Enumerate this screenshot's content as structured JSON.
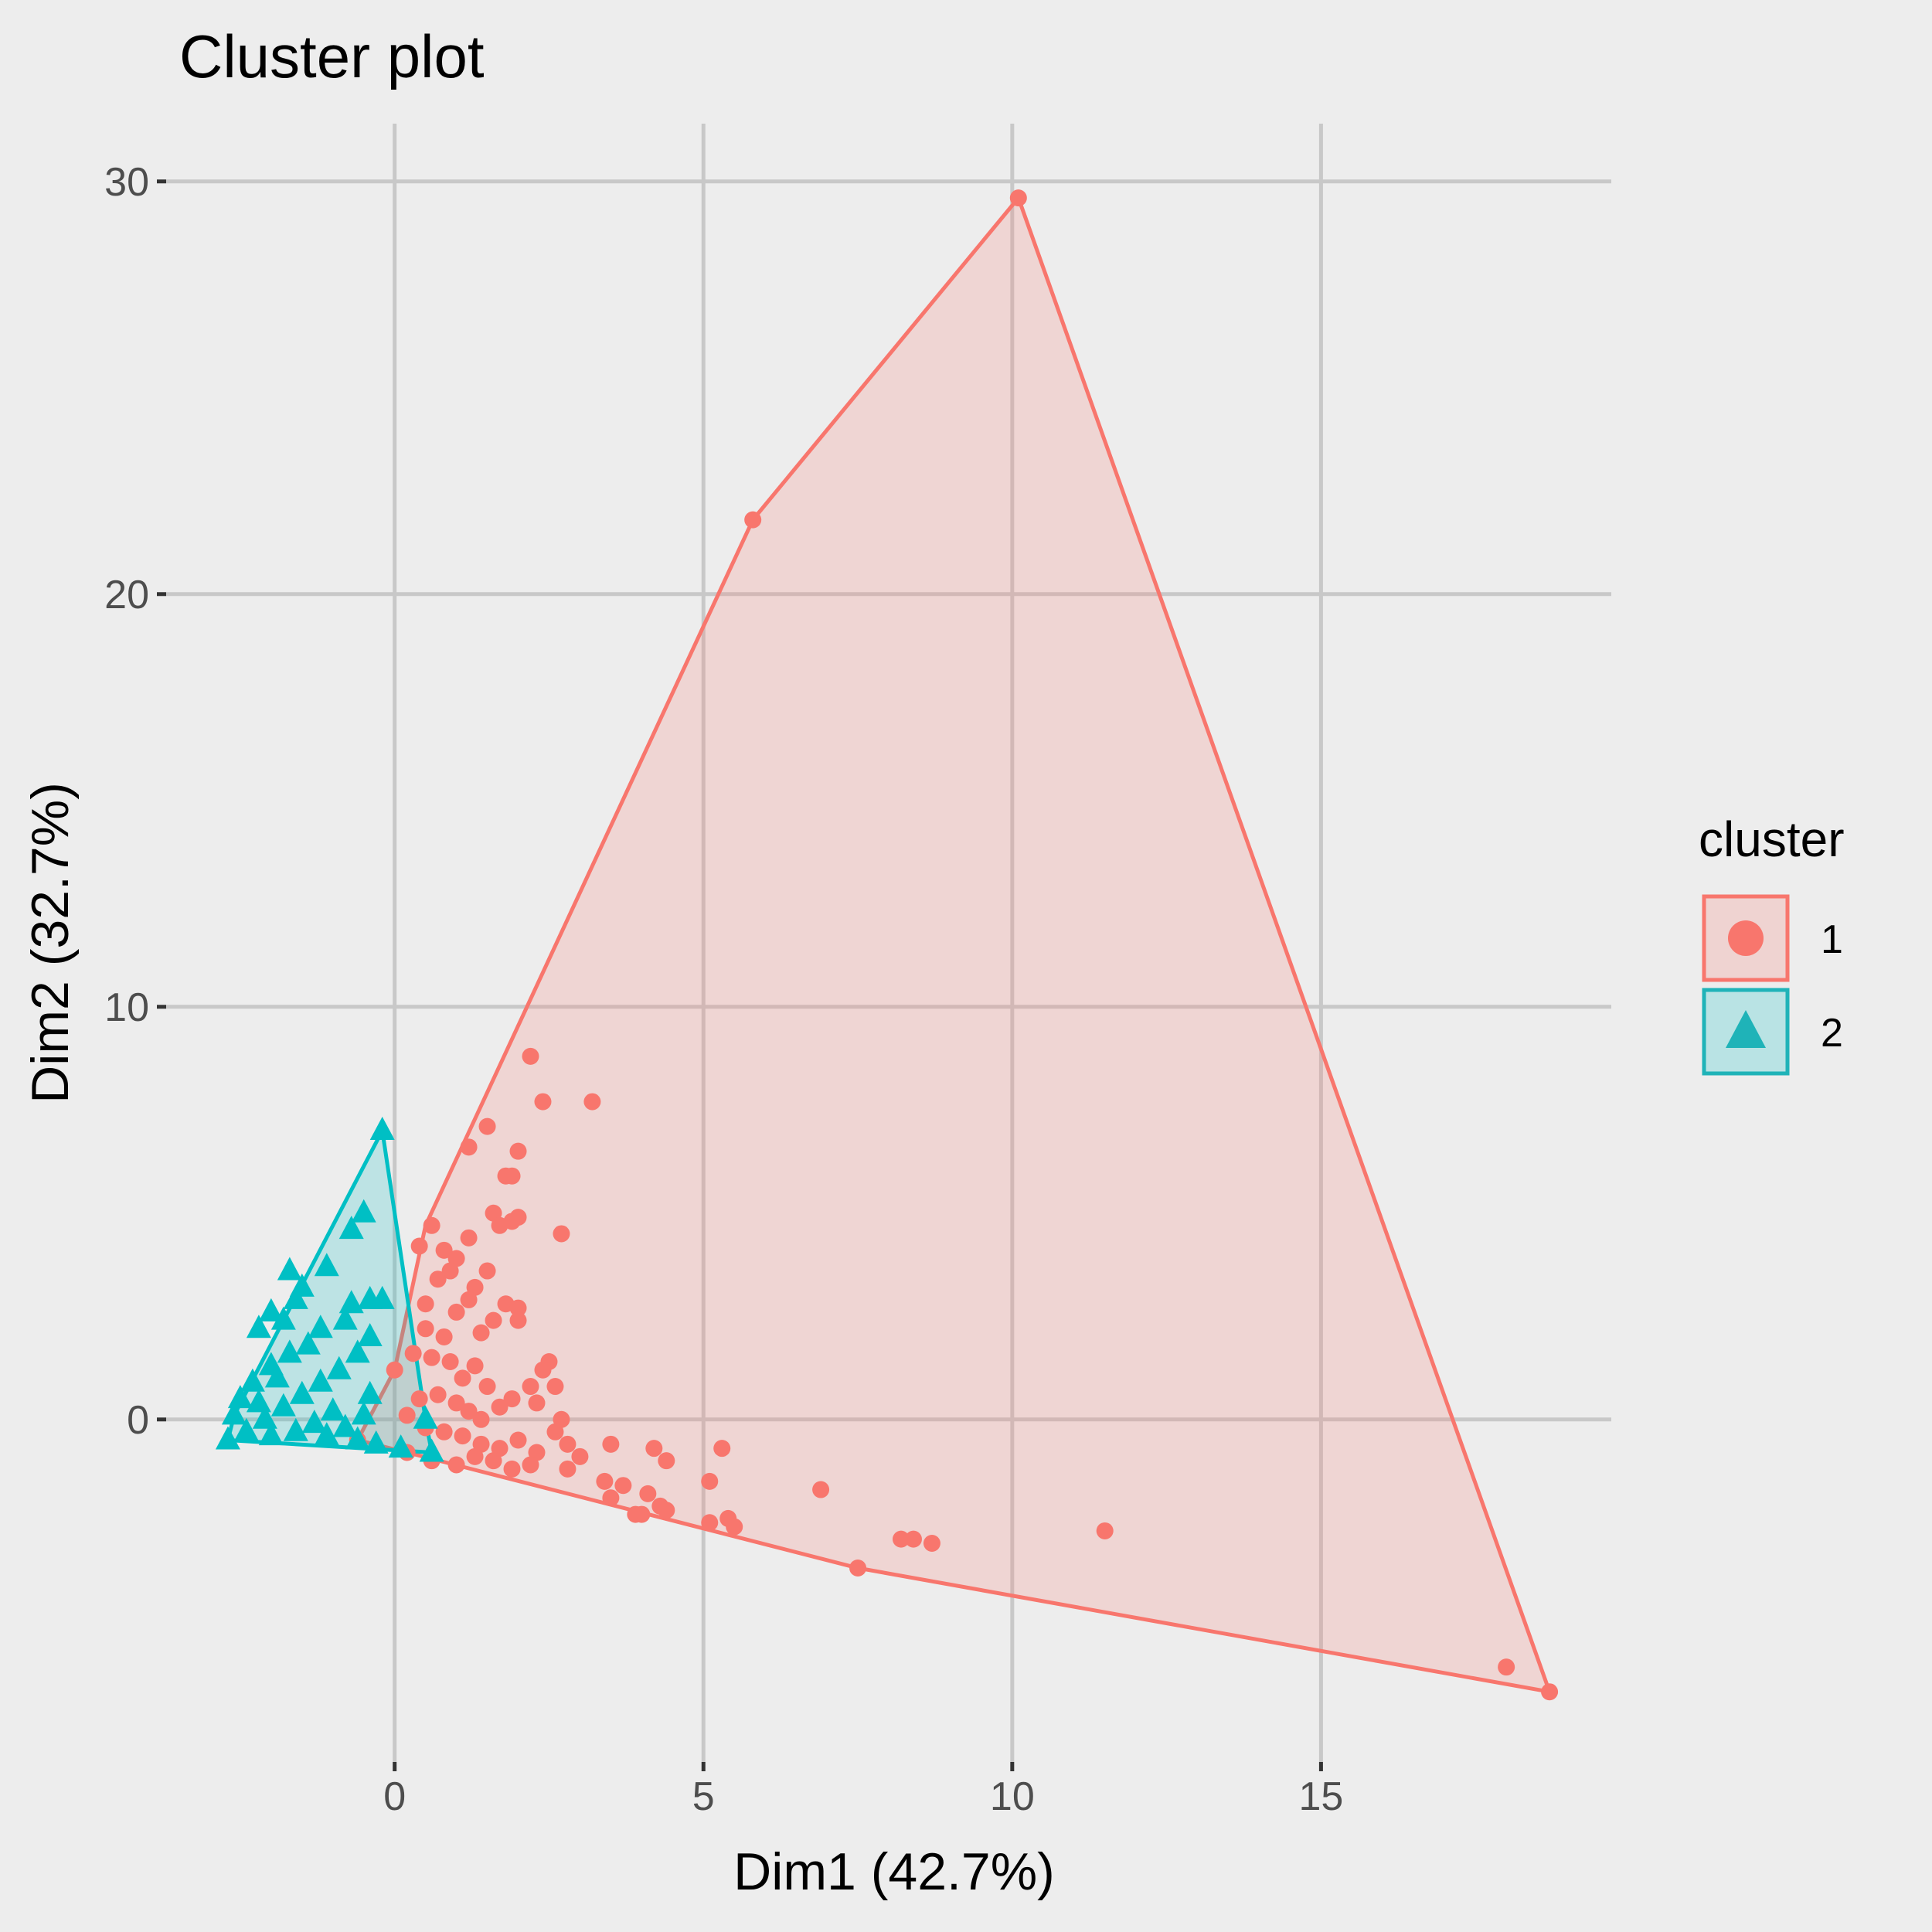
{
  "chart_data": {
    "type": "scatter",
    "title": "Cluster plot",
    "xlabel": "Dim1 (42.7%)",
    "ylabel": "Dim2 (32.7%)",
    "xlim": [
      -3.7,
      19.7
    ],
    "ylim": [
      -8.3,
      31.4
    ],
    "x_ticks": [
      0,
      5,
      10,
      15
    ],
    "y_ticks": [
      0,
      10,
      20,
      30
    ],
    "grid": true,
    "legend": {
      "title": "cluster",
      "placement": "right"
    },
    "series": [
      {
        "name": "1",
        "marker": "circle",
        "color": "#F8766D",
        "fill": "#F8766D",
        "hull": [
          [
            10.1,
            29.6
          ],
          [
            5.8,
            21.8
          ],
          [
            0.5,
            4.7
          ],
          [
            0.0,
            1.2
          ],
          [
            -0.6,
            -0.5
          ],
          [
            0.2,
            -0.8
          ],
          [
            7.5,
            -3.6
          ],
          [
            18.7,
            -6.6
          ]
        ],
        "points": [
          [
            10.1,
            29.6
          ],
          [
            5.8,
            21.8
          ],
          [
            18.7,
            -6.6
          ],
          [
            18.0,
            -6.0
          ],
          [
            7.5,
            -3.6
          ],
          [
            11.5,
            -2.7
          ],
          [
            8.2,
            -2.9
          ],
          [
            8.4,
            -2.9
          ],
          [
            8.7,
            -3.0
          ],
          [
            6.9,
            -1.7
          ],
          [
            5.3,
            -0.7
          ],
          [
            5.1,
            -1.5
          ],
          [
            4.4,
            -1.0
          ],
          [
            4.2,
            -0.7
          ],
          [
            5.4,
            -2.4
          ],
          [
            5.5,
            -2.6
          ],
          [
            5.1,
            -2.5
          ],
          [
            4.4,
            -2.2
          ],
          [
            4.1,
            -1.8
          ],
          [
            4.3,
            -2.1
          ],
          [
            4.0,
            -2.3
          ],
          [
            3.9,
            -2.3
          ],
          [
            3.5,
            -0.6
          ],
          [
            3.7,
            -1.6
          ],
          [
            3.4,
            -1.5
          ],
          [
            3.5,
            -1.9
          ],
          [
            3.0,
            -0.9
          ],
          [
            2.8,
            -1.2
          ],
          [
            2.6,
            -0.3
          ],
          [
            2.7,
            0.0
          ],
          [
            2.2,
            8.8
          ],
          [
            2.4,
            7.7
          ],
          [
            3.2,
            7.7
          ],
          [
            1.5,
            7.1
          ],
          [
            1.2,
            6.6
          ],
          [
            2.0,
            6.5
          ],
          [
            1.9,
            5.9
          ],
          [
            1.8,
            5.9
          ],
          [
            2.7,
            4.5
          ],
          [
            1.6,
            5.0
          ],
          [
            1.7,
            4.7
          ],
          [
            1.9,
            4.8
          ],
          [
            2.0,
            4.9
          ],
          [
            1.2,
            4.4
          ],
          [
            0.6,
            4.7
          ],
          [
            0.4,
            4.2
          ],
          [
            0.8,
            4.1
          ],
          [
            1.0,
            3.9
          ],
          [
            1.5,
            3.6
          ],
          [
            0.9,
            3.6
          ],
          [
            0.7,
            3.4
          ],
          [
            1.3,
            3.2
          ],
          [
            0.5,
            2.8
          ],
          [
            1.8,
            2.8
          ],
          [
            2.0,
            2.7
          ],
          [
            2.0,
            2.4
          ],
          [
            1.6,
            2.4
          ],
          [
            2.5,
            1.4
          ],
          [
            2.4,
            1.2
          ],
          [
            2.2,
            0.8
          ],
          [
            2.6,
            0.8
          ],
          [
            1.9,
            0.5
          ],
          [
            2.3,
            0.4
          ],
          [
            2.8,
            -0.6
          ],
          [
            0.3,
            1.6
          ],
          [
            0.0,
            1.2
          ],
          [
            0.5,
            2.2
          ],
          [
            0.8,
            2.0
          ],
          [
            1.0,
            2.6
          ],
          [
            1.2,
            2.9
          ],
          [
            1.4,
            2.1
          ],
          [
            0.6,
            1.5
          ],
          [
            0.9,
            1.4
          ],
          [
            1.1,
            1.0
          ],
          [
            1.3,
            1.3
          ],
          [
            1.5,
            0.8
          ],
          [
            0.4,
            0.5
          ],
          [
            0.7,
            0.6
          ],
          [
            1.0,
            0.4
          ],
          [
            1.2,
            0.2
          ],
          [
            1.4,
            0.0
          ],
          [
            1.7,
            0.3
          ],
          [
            0.2,
            0.1
          ],
          [
            0.5,
            -0.2
          ],
          [
            0.8,
            -0.3
          ],
          [
            1.1,
            -0.4
          ],
          [
            1.4,
            -0.6
          ],
          [
            1.7,
            -0.7
          ],
          [
            2.0,
            -0.5
          ],
          [
            2.3,
            -0.8
          ],
          [
            1.6,
            -1.0
          ],
          [
            1.9,
            -1.2
          ],
          [
            2.2,
            -1.1
          ],
          [
            -0.6,
            -0.5
          ],
          [
            0.2,
            -0.8
          ],
          [
            0.6,
            -1.0
          ],
          [
            1.0,
            -1.1
          ],
          [
            1.3,
            -0.9
          ]
        ]
      },
      {
        "name": "2",
        "marker": "triangle",
        "color": "#00BFC4",
        "fill": "#00BFC4",
        "hull": [
          [
            -0.2,
            7.0
          ],
          [
            -2.6,
            0.1
          ],
          [
            -2.7,
            -0.5
          ],
          [
            0.6,
            -0.8
          ],
          [
            0.5,
            0.0
          ]
        ],
        "points": [
          [
            -0.2,
            7.0
          ],
          [
            -0.5,
            5.0
          ],
          [
            -0.7,
            4.6
          ],
          [
            -1.1,
            3.7
          ],
          [
            -1.7,
            3.6
          ],
          [
            -1.5,
            3.2
          ],
          [
            -1.6,
            2.9
          ],
          [
            -2.0,
            2.6
          ],
          [
            -1.8,
            2.4
          ],
          [
            -2.2,
            2.2
          ],
          [
            -0.4,
            2.9
          ],
          [
            -0.7,
            2.8
          ],
          [
            -0.2,
            2.9
          ],
          [
            -0.8,
            2.4
          ],
          [
            -1.2,
            2.2
          ],
          [
            -1.4,
            1.8
          ],
          [
            -1.7,
            1.6
          ],
          [
            -2.0,
            1.3
          ],
          [
            -2.3,
            0.9
          ],
          [
            -2.5,
            0.5
          ],
          [
            -2.6,
            0.1
          ],
          [
            -2.7,
            -0.5
          ],
          [
            -2.4,
            -0.3
          ],
          [
            -2.1,
            0.0
          ],
          [
            -1.8,
            0.3
          ],
          [
            -1.5,
            0.6
          ],
          [
            -1.2,
            0.9
          ],
          [
            -0.9,
            1.2
          ],
          [
            -0.6,
            1.6
          ],
          [
            -0.4,
            2.0
          ],
          [
            -1.0,
            0.2
          ],
          [
            -1.3,
            -0.1
          ],
          [
            -1.6,
            -0.3
          ],
          [
            -2.0,
            -0.4
          ],
          [
            -0.8,
            -0.2
          ],
          [
            -0.5,
            0.1
          ],
          [
            -0.4,
            0.6
          ],
          [
            -0.3,
            -0.6
          ],
          [
            0.1,
            -0.7
          ],
          [
            0.6,
            -0.8
          ],
          [
            0.5,
            0.0
          ],
          [
            -1.9,
            1.0
          ],
          [
            -2.2,
            0.4
          ],
          [
            -1.1,
            -0.4
          ],
          [
            -0.6,
            -0.5
          ]
        ]
      }
    ]
  }
}
